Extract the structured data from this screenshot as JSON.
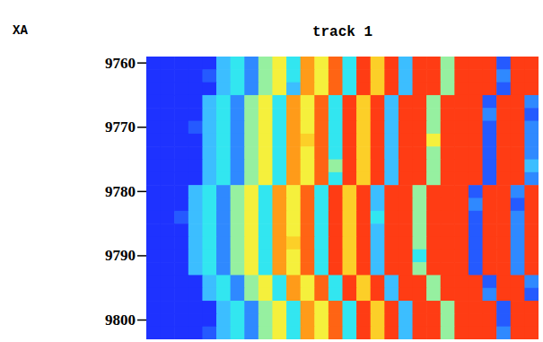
{
  "chart_data": {
    "type": "heatmap",
    "title": "track 1",
    "y_label": "XA",
    "ylim": [
      9759,
      9803
    ],
    "yticks": [
      9760,
      9770,
      9780,
      9790,
      9800
    ],
    "tick_labels": "y",
    "color_range": [
      0,
      10
    ],
    "cells": [
      [
        0,
        0,
        0,
        0,
        0,
        3,
        4,
        2,
        5,
        6,
        4,
        8,
        6,
        9,
        4,
        10,
        7,
        10,
        3,
        10,
        10,
        5,
        10,
        10,
        10,
        1,
        10,
        10
      ],
      [
        0,
        0,
        0,
        0,
        1,
        3,
        4,
        2,
        5,
        6,
        4,
        8,
        6,
        9,
        4,
        10,
        7,
        10,
        3,
        10,
        10,
        5,
        10,
        10,
        10,
        2,
        10,
        10
      ],
      [
        0,
        0,
        0,
        0,
        0,
        3,
        4,
        2,
        5,
        6,
        3,
        8,
        6,
        9,
        4,
        10,
        7,
        10,
        3,
        10,
        10,
        5,
        10,
        10,
        10,
        1,
        10,
        10
      ],
      [
        0,
        0,
        0,
        0,
        3,
        4,
        2,
        5,
        6,
        4,
        8,
        6,
        9,
        4,
        10,
        7,
        10,
        3,
        10,
        10,
        5,
        10,
        10,
        10,
        1,
        10,
        10,
        2
      ],
      [
        0,
        0,
        0,
        0,
        3,
        4,
        2,
        5,
        6,
        4,
        8,
        6,
        9,
        4,
        10,
        7,
        10,
        3,
        10,
        10,
        5,
        10,
        10,
        10,
        2,
        10,
        10,
        1
      ],
      [
        0,
        0,
        0,
        1,
        3,
        4,
        2,
        5,
        6,
        4,
        8,
        6,
        9,
        4,
        10,
        7,
        10,
        3,
        10,
        10,
        5,
        10,
        10,
        10,
        1,
        10,
        10,
        2
      ],
      [
        0,
        0,
        0,
        0,
        3,
        4,
        2,
        5,
        6,
        4,
        8,
        7,
        9,
        4,
        10,
        7,
        10,
        3,
        10,
        10,
        6,
        10,
        10,
        10,
        1,
        10,
        10,
        2
      ],
      [
        0,
        0,
        0,
        0,
        3,
        4,
        2,
        5,
        6,
        4,
        8,
        6,
        9,
        4,
        10,
        7,
        10,
        3,
        10,
        10,
        5,
        10,
        10,
        10,
        1,
        10,
        10,
        2
      ],
      [
        0,
        0,
        0,
        0,
        3,
        4,
        2,
        5,
        6,
        4,
        8,
        6,
        9,
        5,
        10,
        7,
        10,
        3,
        10,
        10,
        5,
        10,
        10,
        10,
        1,
        10,
        10,
        3
      ],
      [
        0,
        0,
        0,
        0,
        3,
        4,
        2,
        5,
        6,
        4,
        8,
        6,
        9,
        4,
        10,
        7,
        10,
        3,
        10,
        10,
        5,
        10,
        10,
        10,
        1,
        10,
        10,
        2
      ],
      [
        0,
        0,
        0,
        3,
        4,
        2,
        5,
        6,
        4,
        8,
        6,
        9,
        4,
        10,
        7,
        10,
        3,
        10,
        10,
        5,
        10,
        10,
        10,
        1,
        10,
        10,
        2,
        10
      ],
      [
        0,
        0,
        0,
        3,
        4,
        2,
        5,
        6,
        4,
        8,
        6,
        9,
        4,
        10,
        7,
        10,
        3,
        10,
        10,
        5,
        10,
        10,
        10,
        2,
        10,
        10,
        1,
        10
      ],
      [
        0,
        0,
        1,
        3,
        4,
        2,
        5,
        6,
        4,
        8,
        6,
        9,
        4,
        10,
        7,
        10,
        4,
        10,
        10,
        5,
        10,
        10,
        10,
        1,
        10,
        10,
        2,
        10
      ],
      [
        0,
        0,
        0,
        3,
        4,
        2,
        5,
        6,
        4,
        8,
        6,
        9,
        4,
        10,
        7,
        10,
        3,
        10,
        10,
        5,
        10,
        10,
        10,
        1,
        10,
        10,
        2,
        10
      ],
      [
        0,
        0,
        0,
        3,
        4,
        2,
        5,
        6,
        4,
        8,
        7,
        9,
        4,
        10,
        7,
        10,
        3,
        10,
        10,
        5,
        10,
        10,
        10,
        1,
        10,
        10,
        2,
        10
      ],
      [
        0,
        0,
        0,
        3,
        4,
        2,
        5,
        6,
        4,
        8,
        6,
        9,
        4,
        10,
        7,
        10,
        3,
        10,
        10,
        4,
        10,
        10,
        10,
        1,
        10,
        10,
        2,
        10
      ],
      [
        0,
        0,
        0,
        3,
        4,
        2,
        5,
        6,
        4,
        8,
        6,
        9,
        4,
        10,
        7,
        10,
        3,
        10,
        10,
        5,
        10,
        10,
        10,
        1,
        10,
        10,
        2,
        10
      ],
      [
        0,
        0,
        0,
        0,
        3,
        4,
        2,
        5,
        6,
        4,
        8,
        6,
        9,
        4,
        10,
        7,
        10,
        3,
        10,
        10,
        5,
        10,
        10,
        10,
        1,
        10,
        10,
        2
      ],
      [
        0,
        0,
        0,
        0,
        3,
        4,
        2,
        5,
        6,
        4,
        8,
        6,
        9,
        4,
        10,
        7,
        10,
        3,
        10,
        10,
        5,
        10,
        10,
        10,
        2,
        10,
        10,
        1
      ],
      [
        0,
        0,
        0,
        0,
        0,
        3,
        4,
        2,
        5,
        6,
        4,
        8,
        6,
        9,
        4,
        10,
        7,
        10,
        3,
        10,
        10,
        5,
        10,
        10,
        10,
        1,
        10,
        10
      ],
      [
        0,
        0,
        0,
        0,
        0,
        3,
        4,
        2,
        5,
        6,
        4,
        8,
        6,
        9,
        4,
        10,
        7,
        10,
        3,
        10,
        10,
        5,
        10,
        10,
        10,
        1,
        10,
        10
      ],
      [
        0,
        0,
        0,
        0,
        1,
        3,
        4,
        2,
        5,
        6,
        4,
        8,
        6,
        9,
        4,
        10,
        7,
        10,
        3,
        10,
        10,
        5,
        10,
        10,
        10,
        2,
        10,
        10
      ]
    ]
  }
}
